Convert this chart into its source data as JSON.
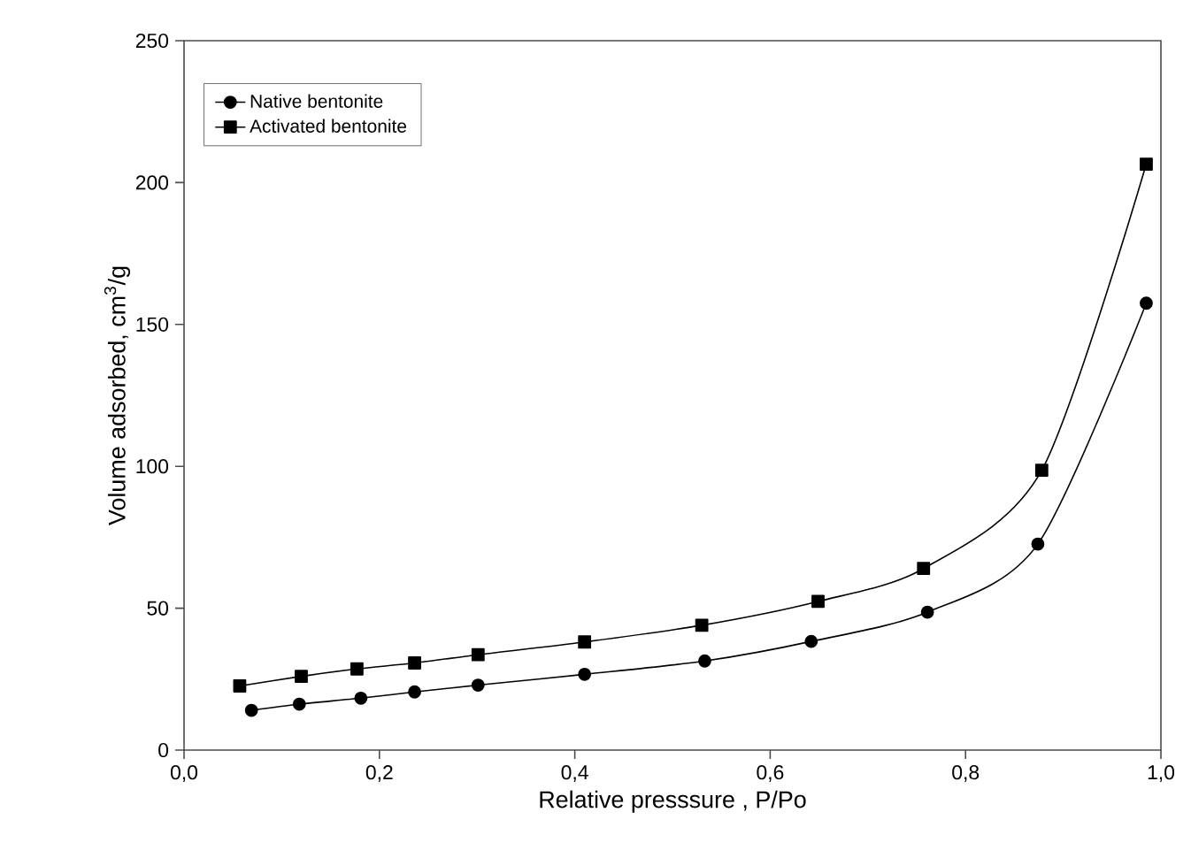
{
  "chart_data": {
    "type": "line",
    "xlabel": "Relative presssure , P/Po",
    "ylabel": "Volume adsorbed, cm$^{3}$/g",
    "xlim": [
      0,
      1
    ],
    "ylim": [
      0,
      250
    ],
    "xticks": [
      {
        "value": 0,
        "label": "0,0"
      },
      {
        "value": 0.2,
        "label": "0,2"
      },
      {
        "value": 0.4,
        "label": "0,4"
      },
      {
        "value": 0.6,
        "label": "0,6"
      },
      {
        "value": 0.8,
        "label": "0,8"
      },
      {
        "value": 1,
        "label": "1,0"
      }
    ],
    "yticks": [
      0,
      50,
      100,
      150,
      200,
      250
    ],
    "legend": "top left",
    "grid": false,
    "line_style": "solid",
    "series": [
      {
        "name": "Native bentonite",
        "color": "#000000",
        "marker": "circle",
        "x": [
          0.069,
          0.118,
          0.181,
          0.236,
          0.301,
          0.41,
          0.533,
          0.642,
          0.761,
          0.874,
          0.985
        ],
        "values": [
          14,
          16.2,
          18.3,
          20.5,
          22.9,
          26.7,
          31.4,
          38.3,
          48.6,
          72.6,
          157.5
        ]
      },
      {
        "name": "Activated bentonite",
        "color": "#000000",
        "marker": "square",
        "x": [
          0.057,
          0.12,
          0.177,
          0.236,
          0.301,
          0.41,
          0.53,
          0.649,
          0.757,
          0.878,
          0.985
        ],
        "values": [
          22.6,
          26,
          28.6,
          30.7,
          33.6,
          38.1,
          44,
          52.4,
          64,
          98.6,
          206.5
        ]
      }
    ]
  }
}
